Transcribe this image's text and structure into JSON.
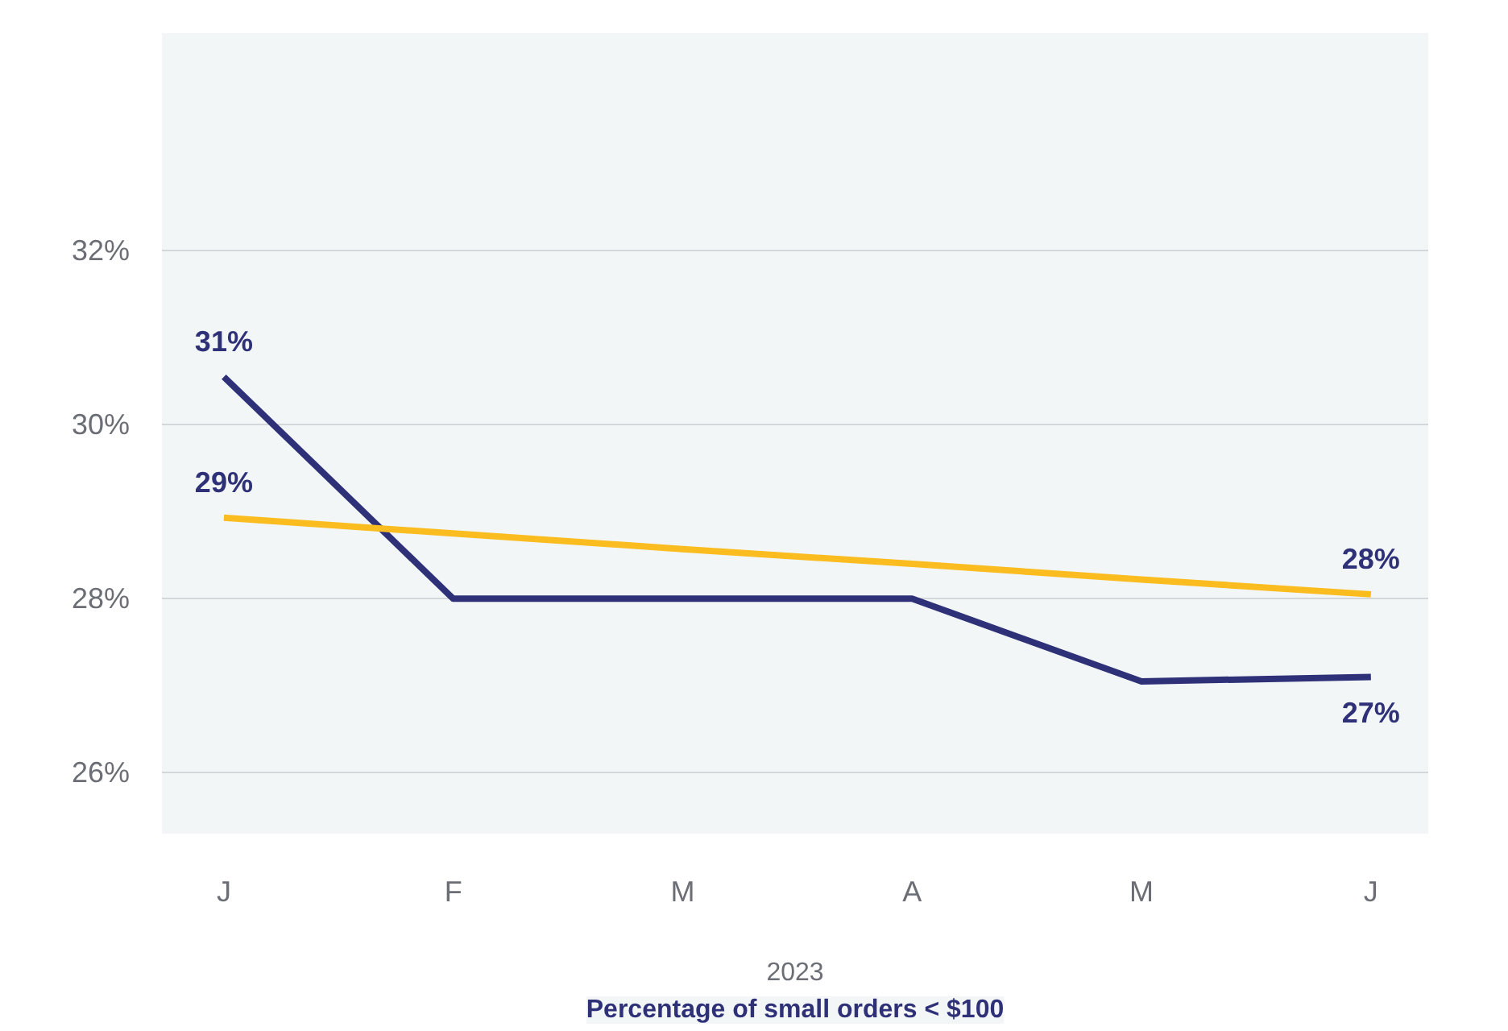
{
  "chart_data": {
    "type": "line",
    "title": "Percentage of small orders < $100",
    "xlabel": "2023",
    "categories": [
      "J",
      "F",
      "M",
      "A",
      "M",
      "J"
    ],
    "series": [
      {
        "color": "#2e3177",
        "values": [
          30.55,
          28.0,
          28.0,
          28.0,
          27.05,
          27.1
        ],
        "value_labels": [
          "31%",
          null,
          null,
          null,
          null,
          "27%"
        ]
      },
      {
        "color": "#fbbc1f",
        "values": [
          28.93,
          28.75,
          28.57,
          28.4,
          28.22,
          28.05
        ],
        "value_labels": [
          "29%",
          null,
          null,
          null,
          null,
          "28%"
        ]
      }
    ],
    "ylim": [
      25.3,
      34.5
    ],
    "yticks": [
      {
        "value": 26,
        "label": "26%"
      },
      {
        "value": 28,
        "label": "28%"
      },
      {
        "value": 30,
        "label": "30%"
      },
      {
        "value": 32,
        "label": "32%"
      }
    ],
    "grid": "y",
    "marker": "none",
    "line_style": "solid"
  }
}
